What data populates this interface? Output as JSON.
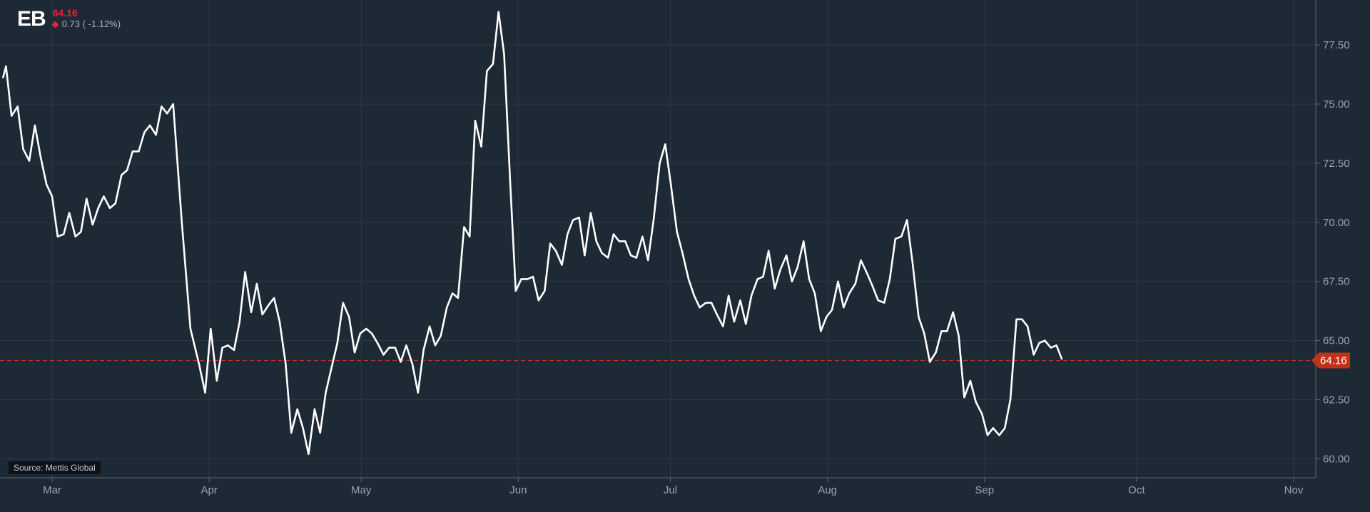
{
  "header": {
    "ticker": "EB",
    "price": "64.16",
    "change": "0.73 ( -1.12%)"
  },
  "source_label": "Source: Mettis Global",
  "colors": {
    "background": "#1d2935",
    "line": "#ffffff",
    "last_price": "#c0331a",
    "down": "#e8203c"
  },
  "chart_data": {
    "type": "line",
    "title": "",
    "xlabel": "",
    "ylabel": "",
    "ylim": [
      59.2,
      79.4
    ],
    "y_ticks": [
      "60.00",
      "62.50",
      "65.00",
      "67.50",
      "70.00",
      "72.50",
      "75.00",
      "77.50"
    ],
    "x_ticks": [
      {
        "label": "Mar",
        "day": 0
      },
      {
        "label": "Apr",
        "day": 31
      },
      {
        "label": "May",
        "day": 61
      },
      {
        "label": "Jun",
        "day": 92
      },
      {
        "label": "Jul",
        "day": 122
      },
      {
        "label": "Aug",
        "day": 153
      },
      {
        "label": "Sep",
        "day": 184
      },
      {
        "label": "Oct",
        "day": 214
      },
      {
        "label": "Nov",
        "day": 245
      }
    ],
    "grid": true,
    "last_price": 64.16,
    "last_price_label": "64.16",
    "series": [
      {
        "values": [
          [
            -9.7,
            76.1
          ],
          [
            -9.1,
            76.6
          ],
          [
            -8.0,
            74.5
          ],
          [
            -6.8,
            74.9
          ],
          [
            -5.7,
            73.1
          ],
          [
            -4.5,
            72.6
          ],
          [
            -3.4,
            74.1
          ],
          [
            -2.3,
            72.8
          ],
          [
            -1.1,
            71.6
          ],
          [
            0.0,
            71.1
          ],
          [
            1.1,
            69.4
          ],
          [
            2.3,
            69.5
          ],
          [
            3.4,
            70.4
          ],
          [
            4.6,
            69.4
          ],
          [
            5.7,
            69.6
          ],
          [
            6.8,
            71.0
          ],
          [
            8.0,
            69.9
          ],
          [
            9.1,
            70.6
          ],
          [
            10.2,
            71.1
          ],
          [
            11.4,
            70.6
          ],
          [
            12.5,
            70.8
          ],
          [
            13.7,
            72.0
          ],
          [
            14.8,
            72.2
          ],
          [
            15.9,
            73.0
          ],
          [
            17.1,
            73.0
          ],
          [
            18.2,
            73.8
          ],
          [
            19.3,
            74.1
          ],
          [
            20.5,
            73.7
          ],
          [
            21.6,
            74.9
          ],
          [
            22.7,
            74.6
          ],
          [
            23.9,
            75.0
          ],
          [
            25.6,
            70.0
          ],
          [
            27.3,
            65.5
          ],
          [
            29.0,
            64.0
          ],
          [
            30.2,
            62.8
          ],
          [
            31.3,
            65.5
          ],
          [
            32.5,
            63.3
          ],
          [
            33.6,
            64.7
          ],
          [
            34.7,
            64.8
          ],
          [
            35.9,
            64.6
          ],
          [
            37.0,
            65.8
          ],
          [
            38.1,
            67.9
          ],
          [
            39.3,
            66.2
          ],
          [
            40.4,
            67.4
          ],
          [
            41.5,
            66.1
          ],
          [
            42.7,
            66.5
          ],
          [
            43.8,
            66.8
          ],
          [
            44.9,
            65.8
          ],
          [
            46.1,
            64.0
          ],
          [
            47.2,
            61.1
          ],
          [
            48.4,
            62.1
          ],
          [
            49.5,
            61.3
          ],
          [
            50.6,
            60.2
          ],
          [
            51.8,
            62.1
          ],
          [
            52.9,
            61.1
          ],
          [
            54.0,
            62.8
          ],
          [
            55.2,
            63.9
          ],
          [
            56.3,
            64.9
          ],
          [
            57.4,
            66.6
          ],
          [
            58.6,
            66.0
          ],
          [
            59.7,
            64.5
          ],
          [
            60.8,
            65.3
          ],
          [
            62.0,
            65.5
          ],
          [
            63.1,
            65.3
          ],
          [
            64.2,
            64.9
          ],
          [
            65.4,
            64.4
          ],
          [
            66.5,
            64.7
          ],
          [
            67.7,
            64.7
          ],
          [
            68.8,
            64.1
          ],
          [
            69.9,
            64.8
          ],
          [
            71.1,
            64.0
          ],
          [
            72.2,
            62.8
          ],
          [
            73.3,
            64.6
          ],
          [
            74.5,
            65.6
          ],
          [
            75.6,
            64.8
          ],
          [
            76.7,
            65.2
          ],
          [
            77.9,
            66.4
          ],
          [
            79.0,
            67.0
          ],
          [
            80.1,
            66.8
          ],
          [
            81.3,
            69.8
          ],
          [
            82.4,
            69.4
          ],
          [
            83.5,
            74.3
          ],
          [
            84.7,
            73.2
          ],
          [
            85.8,
            76.4
          ],
          [
            87.0,
            76.7
          ],
          [
            88.1,
            78.9
          ],
          [
            89.2,
            77.1
          ],
          [
            90.4,
            71.7
          ],
          [
            91.5,
            67.1
          ],
          [
            92.6,
            67.6
          ],
          [
            93.8,
            67.6
          ],
          [
            94.9,
            67.7
          ],
          [
            96.0,
            66.7
          ],
          [
            97.2,
            67.1
          ],
          [
            98.3,
            69.1
          ],
          [
            99.4,
            68.8
          ],
          [
            100.6,
            68.2
          ],
          [
            101.7,
            69.5
          ],
          [
            102.8,
            70.1
          ],
          [
            104.0,
            70.2
          ],
          [
            105.1,
            68.6
          ],
          [
            106.3,
            70.4
          ],
          [
            107.4,
            69.2
          ],
          [
            108.5,
            68.7
          ],
          [
            109.7,
            68.5
          ],
          [
            110.8,
            69.5
          ],
          [
            111.9,
            69.2
          ],
          [
            113.1,
            69.2
          ],
          [
            114.2,
            68.6
          ],
          [
            115.3,
            68.5
          ],
          [
            116.5,
            69.4
          ],
          [
            117.6,
            68.4
          ],
          [
            118.7,
            70.1
          ],
          [
            119.9,
            72.5
          ],
          [
            121.0,
            73.3
          ],
          [
            122.1,
            71.6
          ],
          [
            123.3,
            69.6
          ],
          [
            124.4,
            68.7
          ],
          [
            125.6,
            67.6
          ],
          [
            126.7,
            66.9
          ],
          [
            127.8,
            66.4
          ],
          [
            129.0,
            66.6
          ],
          [
            130.1,
            66.6
          ],
          [
            131.2,
            66.1
          ],
          [
            132.4,
            65.6
          ],
          [
            133.5,
            66.9
          ],
          [
            134.6,
            65.8
          ],
          [
            135.8,
            66.7
          ],
          [
            136.9,
            65.7
          ],
          [
            138.0,
            66.9
          ],
          [
            139.2,
            67.6
          ],
          [
            140.3,
            67.7
          ],
          [
            141.4,
            68.8
          ],
          [
            142.6,
            67.2
          ],
          [
            143.7,
            68.0
          ],
          [
            144.9,
            68.6
          ],
          [
            146.0,
            67.5
          ],
          [
            147.1,
            68.1
          ],
          [
            148.3,
            69.2
          ],
          [
            149.4,
            67.6
          ],
          [
            150.5,
            67.0
          ],
          [
            151.7,
            65.4
          ],
          [
            152.8,
            66.0
          ],
          [
            153.9,
            66.3
          ],
          [
            155.1,
            67.5
          ],
          [
            156.2,
            66.4
          ],
          [
            157.3,
            67.0
          ],
          [
            158.5,
            67.4
          ],
          [
            159.6,
            68.4
          ],
          [
            160.7,
            67.9
          ],
          [
            161.9,
            67.3
          ],
          [
            163.0,
            66.7
          ],
          [
            164.2,
            66.6
          ],
          [
            165.3,
            67.6
          ],
          [
            166.4,
            69.3
          ],
          [
            167.6,
            69.4
          ],
          [
            168.7,
            70.1
          ],
          [
            169.8,
            68.3
          ],
          [
            171.0,
            66.0
          ],
          [
            172.1,
            65.3
          ],
          [
            173.2,
            64.1
          ],
          [
            174.4,
            64.5
          ],
          [
            175.5,
            65.4
          ],
          [
            176.6,
            65.4
          ],
          [
            177.8,
            66.2
          ],
          [
            178.9,
            65.2
          ],
          [
            180.0,
            62.6
          ],
          [
            181.2,
            63.3
          ],
          [
            182.3,
            62.4
          ],
          [
            183.5,
            61.9
          ],
          [
            184.6,
            61.0
          ],
          [
            185.7,
            61.3
          ],
          [
            186.9,
            61.0
          ],
          [
            188.0,
            61.3
          ],
          [
            189.1,
            62.5
          ],
          [
            190.3,
            65.9
          ],
          [
            191.4,
            65.9
          ],
          [
            192.5,
            65.6
          ],
          [
            193.7,
            64.4
          ],
          [
            194.8,
            64.9
          ],
          [
            195.9,
            65.0
          ],
          [
            197.1,
            64.7
          ],
          [
            198.2,
            64.8
          ],
          [
            199.3,
            64.2
          ]
        ]
      }
    ]
  }
}
